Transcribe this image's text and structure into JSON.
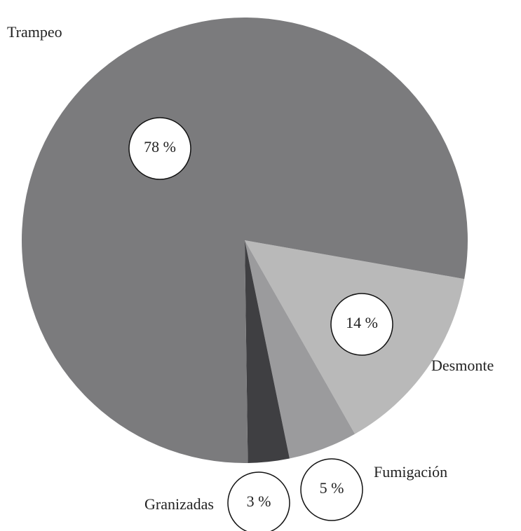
{
  "chart_data": {
    "type": "pie",
    "categories": [
      "Desmonte",
      "Fumigación",
      "Granizadas",
      "Trampeo"
    ],
    "values": [
      14,
      5,
      3,
      78
    ],
    "value_labels": [
      "14 %",
      "5 %",
      "3 %",
      "78 %"
    ],
    "colors": [
      "#b9b9b9",
      "#9b9b9d",
      "#3f3f42",
      "#7b7b7d"
    ]
  }
}
